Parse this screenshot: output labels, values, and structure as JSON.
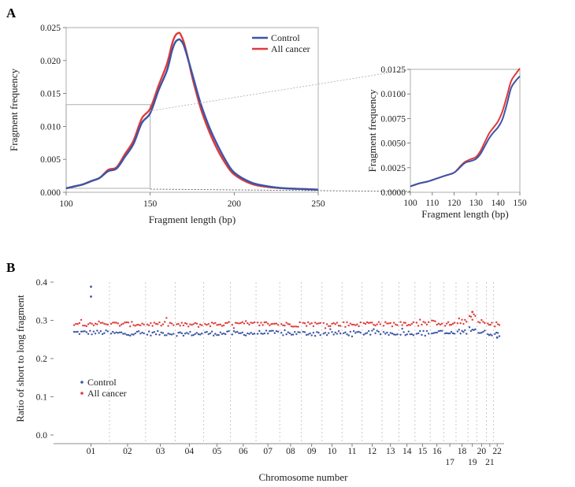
{
  "chart_data": [
    {
      "panel": "A",
      "type": "line",
      "title": "",
      "xlabel": "Fragment length (bp)",
      "ylabel": "Fragment frequency",
      "xlim": [
        100,
        250
      ],
      "ylim": [
        0,
        0.025
      ],
      "xticks": [
        "100",
        "150",
        "200",
        "250"
      ],
      "yticks": [
        "0.000",
        "0.005",
        "0.010",
        "0.015",
        "0.020",
        "0.025"
      ],
      "legend_position": "top-right",
      "series": [
        {
          "name": "Control",
          "color": "#3b55a8",
          "x": [
            100,
            105,
            110,
            115,
            120,
            125,
            130,
            135,
            140,
            145,
            150,
            155,
            160,
            163,
            165,
            167,
            168,
            170,
            173,
            175,
            180,
            185,
            190,
            195,
            200,
            210,
            220,
            230,
            240,
            250
          ],
          "y": [
            0.0006,
            0.0009,
            0.0012,
            0.0017,
            0.0022,
            0.0032,
            0.0036,
            0.0054,
            0.0073,
            0.0105,
            0.012,
            0.0155,
            0.0185,
            0.0215,
            0.0228,
            0.0232,
            0.0231,
            0.0223,
            0.0198,
            0.018,
            0.0135,
            0.01,
            0.0072,
            0.0048,
            0.003,
            0.0015,
            0.0009,
            0.0006,
            0.0005,
            0.0004
          ]
        },
        {
          "name": "All cancer",
          "color": "#e03a3a",
          "x": [
            100,
            105,
            110,
            115,
            120,
            125,
            130,
            135,
            140,
            145,
            150,
            155,
            160,
            163,
            165,
            167,
            168,
            170,
            173,
            175,
            180,
            185,
            190,
            195,
            200,
            210,
            220,
            230,
            240,
            250
          ],
          "y": [
            0.0006,
            0.0009,
            0.0012,
            0.0017,
            0.0022,
            0.0034,
            0.0038,
            0.0058,
            0.0078,
            0.0112,
            0.0127,
            0.0162,
            0.0195,
            0.0225,
            0.0238,
            0.0242,
            0.024,
            0.0228,
            0.0198,
            0.0175,
            0.0128,
            0.0093,
            0.0065,
            0.0043,
            0.0027,
            0.0013,
            0.0008,
            0.0006,
            0.0005,
            0.0004
          ]
        }
      ]
    },
    {
      "panel": "A-inset",
      "type": "line",
      "title": "",
      "xlabel": "Fragment length (bp)",
      "ylabel": "Fragment frequency",
      "xlim": [
        100,
        150
      ],
      "ylim": [
        0,
        0.0125
      ],
      "xticks": [
        "100",
        "110",
        "120",
        "130",
        "140",
        "150"
      ],
      "yticks": [
        "0.0000",
        "0.0025",
        "0.0050",
        "0.0075",
        "0.0100",
        "0.0125"
      ],
      "series": [
        {
          "name": "Control",
          "color": "#3b55a8",
          "x": [
            100,
            104,
            108,
            112,
            116,
            120,
            123,
            125,
            128,
            130,
            132,
            134,
            136,
            138,
            140,
            142,
            144,
            146,
            148,
            150
          ],
          "y": [
            0.0006,
            0.0009,
            0.0011,
            0.0014,
            0.0017,
            0.002,
            0.0026,
            0.003,
            0.0032,
            0.0034,
            0.0039,
            0.0047,
            0.0055,
            0.0061,
            0.0066,
            0.0074,
            0.0089,
            0.0106,
            0.0113,
            0.0118
          ]
        },
        {
          "name": "All cancer",
          "color": "#e03a3a",
          "x": [
            100,
            104,
            108,
            112,
            116,
            120,
            123,
            125,
            128,
            130,
            132,
            134,
            136,
            138,
            140,
            142,
            144,
            146,
            148,
            150
          ],
          "y": [
            0.0006,
            0.0009,
            0.0011,
            0.0014,
            0.0017,
            0.002,
            0.0027,
            0.0031,
            0.0034,
            0.0036,
            0.0042,
            0.0051,
            0.006,
            0.0066,
            0.0072,
            0.0082,
            0.0097,
            0.0113,
            0.012,
            0.0126
          ]
        }
      ]
    },
    {
      "panel": "B",
      "type": "scatter",
      "title": "",
      "xlabel": "Chromosome number",
      "ylabel": "Ratio of short to long fragment",
      "ylim": [
        0,
        0.4
      ],
      "yticks": [
        "0.0",
        "0.1",
        "0.2",
        "0.3",
        "0.4"
      ],
      "legend_position": "middle-left",
      "categories": [
        "01",
        "02",
        "03",
        "04",
        "05",
        "06",
        "07",
        "08",
        "09",
        "10",
        "11",
        "12",
        "13",
        "14",
        "15",
        "16",
        "17",
        "18",
        "19",
        "20",
        "21",
        "22"
      ],
      "category_label_row": [
        "top",
        "top",
        "top",
        "top",
        "top",
        "top",
        "top",
        "top",
        "top",
        "top",
        "top",
        "top",
        "top",
        "top",
        "top",
        "top",
        "bottom",
        "top",
        "bottom",
        "top",
        "bottom",
        "top"
      ],
      "series": [
        {
          "name": "Control",
          "color": "#3b55a8",
          "baseline_per_chromosome": [
            0.268,
            0.266,
            0.266,
            0.265,
            0.266,
            0.266,
            0.267,
            0.266,
            0.266,
            0.266,
            0.266,
            0.267,
            0.266,
            0.267,
            0.267,
            0.268,
            0.266,
            0.27,
            0.278,
            0.268,
            0.266,
            0.264
          ],
          "outliers": [
            {
              "chromosome": "01",
              "y": 0.388
            },
            {
              "chromosome": "01",
              "y": 0.362
            },
            {
              "chromosome": "22",
              "y": 0.255
            }
          ]
        },
        {
          "name": "All cancer",
          "color": "#e03a3a",
          "baseline_per_chromosome": [
            0.292,
            0.29,
            0.29,
            0.288,
            0.29,
            0.29,
            0.291,
            0.289,
            0.29,
            0.29,
            0.29,
            0.292,
            0.29,
            0.292,
            0.292,
            0.294,
            0.29,
            0.296,
            0.31,
            0.294,
            0.29,
            0.29
          ],
          "outliers": [
            {
              "chromosome": "19",
              "y": 0.322
            }
          ]
        }
      ]
    }
  ]
}
